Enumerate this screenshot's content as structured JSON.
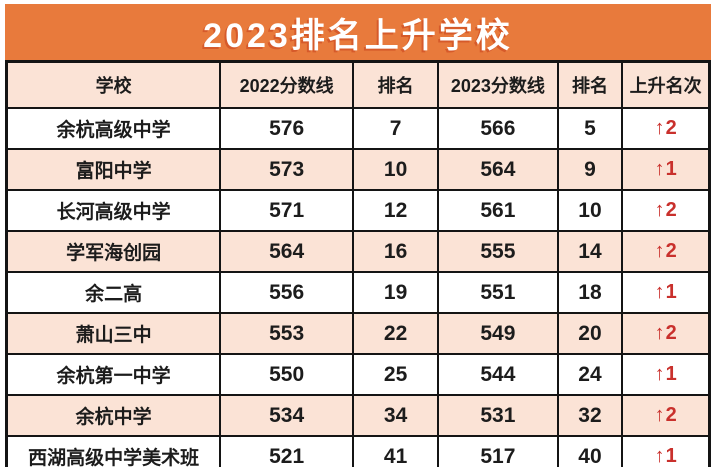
{
  "colors": {
    "title_bar_bg": "#E87A3C",
    "alt_row_bg": "#FBE3D6",
    "rise_red": "#C9302C",
    "border": "#141414",
    "title_text": "#FFFFFF"
  },
  "chart_data": {
    "type": "table",
    "title": "2023排名上升学校",
    "columns": [
      "学校",
      "2022分数线",
      "排名",
      "2023分数线",
      "排名",
      "上升名次"
    ],
    "rows": [
      {
        "school": "余杭高级中学",
        "score_2022": "576",
        "rank_2022": "7",
        "score_2023": "566",
        "rank_2023": "5",
        "rise_arrow": "↑",
        "rise_value": "2"
      },
      {
        "school": "富阳中学",
        "score_2022": "573",
        "rank_2022": "10",
        "score_2023": "564",
        "rank_2023": "9",
        "rise_arrow": "↑",
        "rise_value": "1"
      },
      {
        "school": "长河高级中学",
        "score_2022": "571",
        "rank_2022": "12",
        "score_2023": "561",
        "rank_2023": "10",
        "rise_arrow": "↑",
        "rise_value": "2"
      },
      {
        "school": "学军海创园",
        "score_2022": "564",
        "rank_2022": "16",
        "score_2023": "555",
        "rank_2023": "14",
        "rise_arrow": "↑",
        "rise_value": "2"
      },
      {
        "school": "余二高",
        "score_2022": "556",
        "rank_2022": "19",
        "score_2023": "551",
        "rank_2023": "18",
        "rise_arrow": "↑",
        "rise_value": "1"
      },
      {
        "school": "萧山三中",
        "score_2022": "553",
        "rank_2022": "22",
        "score_2023": "549",
        "rank_2023": "20",
        "rise_arrow": "↑",
        "rise_value": "2"
      },
      {
        "school": "余杭第一中学",
        "score_2022": "550",
        "rank_2022": "25",
        "score_2023": "544",
        "rank_2023": "24",
        "rise_arrow": "↑",
        "rise_value": "1"
      },
      {
        "school": "余杭中学",
        "score_2022": "534",
        "rank_2022": "34",
        "score_2023": "531",
        "rank_2023": "32",
        "rise_arrow": "↑",
        "rise_value": "2"
      },
      {
        "school": "西湖高级中学美术班",
        "score_2022": "521",
        "rank_2022": "41",
        "score_2023": "517",
        "rank_2023": "40",
        "rise_arrow": "↑",
        "rise_value": "1"
      }
    ],
    "layout": {
      "column_widths_percent": [
        30.4,
        18.9,
        12.1,
        17.0,
        9.2,
        12.4
      ],
      "alternating_rows": true,
      "first_data_row_bg": "white"
    }
  }
}
